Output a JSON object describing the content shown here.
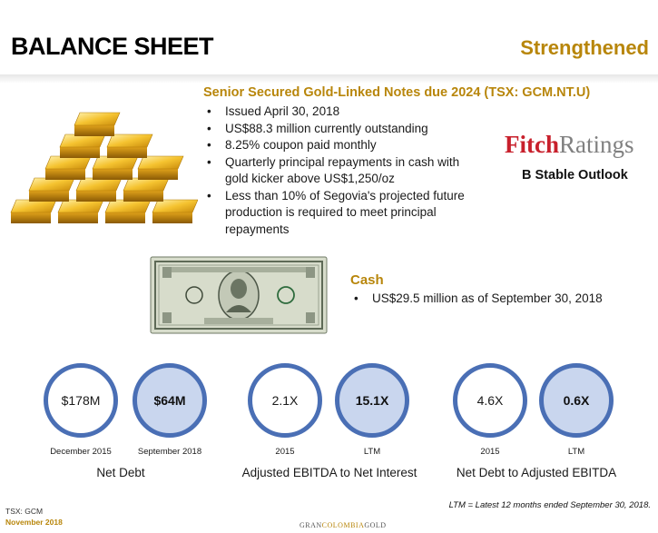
{
  "header": {
    "title": "BALANCE SHEET",
    "subtitle": "Strengthened"
  },
  "notes": {
    "heading": "Senior Secured Gold-Linked Notes due 2024  (TSX: GCM.NT.U)",
    "bullets": [
      "Issued April 30, 2018",
      "US$88.3 million currently outstanding",
      "8.25% coupon paid monthly",
      "Quarterly principal repayments in cash with gold kicker above US$1,250/oz",
      "Less than 10% of Segovia's projected future production is required to meet principal repayments"
    ]
  },
  "rating": {
    "logo_part1": "Fitch",
    "logo_part2": "Ratings",
    "outlook": "B Stable Outlook"
  },
  "cash": {
    "heading": "Cash",
    "bullets": [
      "US$29.5 million as of September 30, 2018"
    ]
  },
  "metrics": [
    {
      "label": "Net Debt",
      "before": {
        "value": "$178M",
        "period": "December 2015"
      },
      "after": {
        "value": "$64M",
        "period": "September 2018"
      }
    },
    {
      "label": "Adjusted EBITDA to Net Interest",
      "before": {
        "value": "2.1X",
        "period": "2015"
      },
      "after": {
        "value": "15.1X",
        "period": "LTM"
      }
    },
    {
      "label": "Net Debt to Adjusted EBITDA",
      "before": {
        "value": "4.6X",
        "period": "2015"
      },
      "after": {
        "value": "0.6X",
        "period": "LTM"
      }
    }
  ],
  "footer": {
    "ticker": "TSX: GCM",
    "date": "November 2018",
    "brand_part1": "GRAN",
    "brand_part2": "COLOMBIA",
    "brand_part3": "GOLD",
    "ltm_note": "LTM = Latest 12 months ended September 30, 2018."
  },
  "colors": {
    "accent_gold": "#b8860b",
    "circle_border": "#4a6fb5",
    "circle_fill_highlight": "#c9d6ee",
    "fitch_red": "#c8202c"
  }
}
